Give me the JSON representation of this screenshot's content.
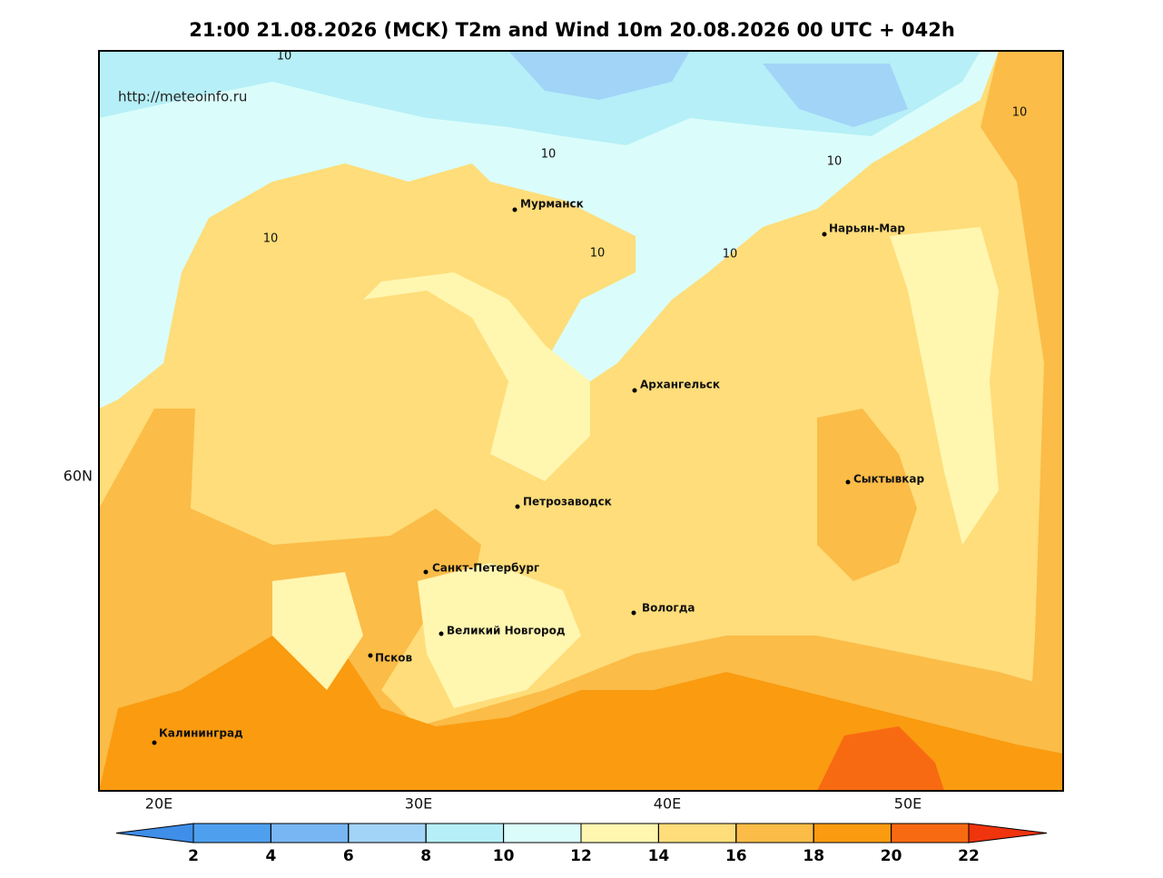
{
  "header": {
    "title": "21:00 21.08.2026 (MCK) T2m and Wind 10m 20.08.2026 00 UTC + 042h"
  },
  "map": {
    "source": "http://meteoinfo.ru",
    "lon_labels": [
      "20E",
      "30E",
      "40E",
      "50E"
    ],
    "lat_labels": [
      "60N"
    ],
    "contour_labels": [
      "10",
      "10",
      "10",
      "10",
      "10",
      "10",
      "10"
    ],
    "cities": [
      "Мурманск",
      "Нарьян-Мар",
      "Архангельск",
      "Сыктывкар",
      "Петрозаводск",
      "Санкт-Петербург",
      "Вологда",
      "Великий Новгород",
      "Псков",
      "Калининград"
    ]
  },
  "colorbar": {
    "ticks": [
      2,
      4,
      6,
      8,
      10,
      12,
      14,
      16,
      18,
      20,
      22
    ],
    "colors": [
      "#3f8ee8",
      "#4ea0ef",
      "#77b6f3",
      "#a2d4f8",
      "#b6eff7",
      "#dafdfb",
      "#fff6b0",
      "#fedd7a",
      "#fbbc48",
      "#fa9b10",
      "#f86a12",
      "#f0340e"
    ]
  }
}
